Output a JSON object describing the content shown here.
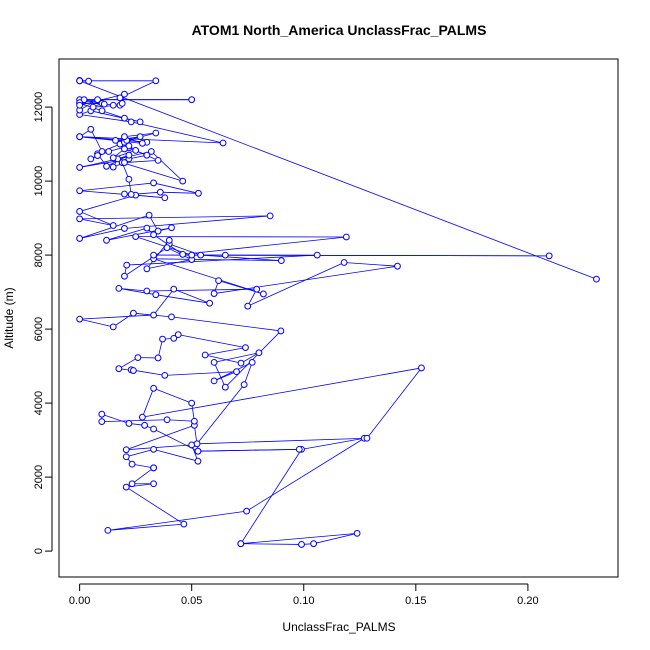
{
  "chart_data": {
    "type": "line",
    "title": "ATOM1 North_America UnclassFrac_PALMS",
    "xlabel": "UnclassFrac_PALMS",
    "ylabel": "Altitude (m)",
    "xlim": [
      -0.0092,
      0.2402
    ],
    "ylim": [
      -700,
      13300
    ],
    "xticks": [
      0.0,
      0.05,
      0.1,
      0.15,
      0.2
    ],
    "xtick_labels": [
      "0.00",
      "0.05",
      "0.10",
      "0.15",
      "0.20"
    ],
    "yticks": [
      0,
      2000,
      4000,
      6000,
      8000,
      10000,
      12000
    ],
    "ytick_labels": [
      "0",
      "2000",
      "4000",
      "6000",
      "8000",
      "10000",
      "12000"
    ],
    "grid": false,
    "legend": "none",
    "series": [
      {
        "color": "#0000ff",
        "marker": "open-circle",
        "x": [
          0.0719,
          0.099,
          0.1044,
          0.1238,
          0.0719,
          0.099,
          0.127,
          0.0745,
          0.0126,
          0.0465,
          0.0208,
          0.033,
          0.0234,
          0.033,
          0.033,
          0.033,
          0.0234,
          0.0208,
          0.033,
          0.0528,
          0.05,
          0.0208,
          0.0512,
          0.0528,
          0.098,
          0.0528,
          0.033,
          0.029,
          0.022,
          0.0099,
          0.0099,
          0.039,
          0.0512,
          0.05,
          0.033,
          0.028,
          0.1525,
          0.1282,
          0.0524,
          0.0734,
          0.077,
          0.06,
          0.07,
          0.038,
          0.023,
          0.024,
          0.0175,
          0.026,
          0.035,
          0.037,
          0.042,
          0.044,
          0.074,
          0.056,
          0.072,
          0.08,
          0.06,
          0.065,
          0.0898,
          0.041,
          0.024,
          0.015,
          0.0,
          0.033,
          0.042,
          0.058,
          0.034,
          0.0175,
          0.03,
          0.079,
          0.075,
          0.118,
          0.1418,
          0.06,
          0.062,
          0.082,
          0.033,
          0.09,
          0.054,
          0.04,
          0.04,
          0.03,
          0.05,
          0.039,
          0.02,
          0.021,
          0.106,
          0.065,
          0.033,
          0.2095,
          0.05,
          0.025,
          0.119,
          0.046,
          0.033,
          0.03,
          0.012,
          0.041,
          0.035,
          0.031,
          0.0,
          0.02,
          0.085,
          0.0,
          0.015,
          0.0,
          0.025,
          0.02,
          0.038,
          0.0,
          0.033,
          0.053,
          0.036,
          0.023,
          0.022,
          0.019,
          0.046,
          0.032,
          0.0,
          0.022,
          0.03,
          0.022,
          0.035,
          0.02,
          0.015,
          0.017,
          0.022,
          0.012,
          0.008,
          0.008,
          0.005,
          0.013,
          0.022,
          0.018,
          0.02,
          0.015,
          0.025,
          0.016,
          0.027,
          0.02,
          0.01,
          0.005,
          0.0,
          0.03,
          0.021,
          0.034,
          0.02,
          0.028,
          0.0,
          0.064,
          0.023,
          0.0,
          0.005,
          0.027,
          0.02,
          0.01,
          0.0,
          0.01,
          0.006,
          0.018,
          0.015,
          0.0,
          0.05,
          0.002,
          0.011,
          0.0,
          0.008,
          0.0,
          0.0,
          0.02,
          0.019,
          0.018,
          0.034,
          0.0,
          0.004,
          0.0,
          0.0,
          0.2306
        ],
        "y": [
          200,
          180,
          200,
          480,
          200,
          2750,
          3050,
          1080,
          560,
          730,
          1730,
          1820,
          1820,
          2250,
          2250,
          2250,
          2350,
          2550,
          2750,
          2430,
          2870,
          2740,
          3400,
          2700,
          2750,
          2700,
          3300,
          3400,
          3450,
          3700,
          3500,
          3550,
          3510,
          4000,
          4400,
          3620,
          4950,
          3050,
          2900,
          4500,
          5100,
          4600,
          4850,
          4750,
          4900,
          4880,
          4930,
          5230,
          5220,
          5730,
          5750,
          5850,
          5500,
          5300,
          5080,
          5360,
          5100,
          4430,
          5950,
          6330,
          6430,
          6060,
          6270,
          6380,
          7080,
          6700,
          6930,
          7100,
          7030,
          7080,
          6620,
          7800,
          7700,
          6960,
          7310,
          6950,
          7900,
          7850,
          8000,
          8300,
          8400,
          7630,
          7880,
          8200,
          7430,
          7730,
          8000,
          8000,
          8000,
          7980,
          8000,
          8500,
          8490,
          8020,
          8550,
          8730,
          8400,
          8740,
          8650,
          9080,
          8450,
          8720,
          9060,
          8980,
          8800,
          9180,
          9620,
          9650,
          9550,
          9740,
          9950,
          9670,
          9700,
          9640,
          10050,
          10500,
          10000,
          10800,
          10370,
          10600,
          10700,
          10900,
          10560,
          10500,
          10380,
          10600,
          10700,
          10400,
          10740,
          10690,
          10600,
          10800,
          10950,
          11000,
          10870,
          10630,
          10830,
          11100,
          11200,
          11050,
          10800,
          11400,
          11200,
          11050,
          11100,
          11300,
          11200,
          11020,
          11200,
          11030,
          11600,
          11800,
          11900,
          11600,
          11700,
          11900,
          12100,
          12100,
          12000,
          12050,
          12050,
          12200,
          12200,
          12200,
          12080,
          12120,
          12200,
          11920,
          12050,
          12350,
          12100,
          12250,
          12710,
          12710,
          12700,
          12720,
          12710,
          7350
        ]
      }
    ]
  }
}
